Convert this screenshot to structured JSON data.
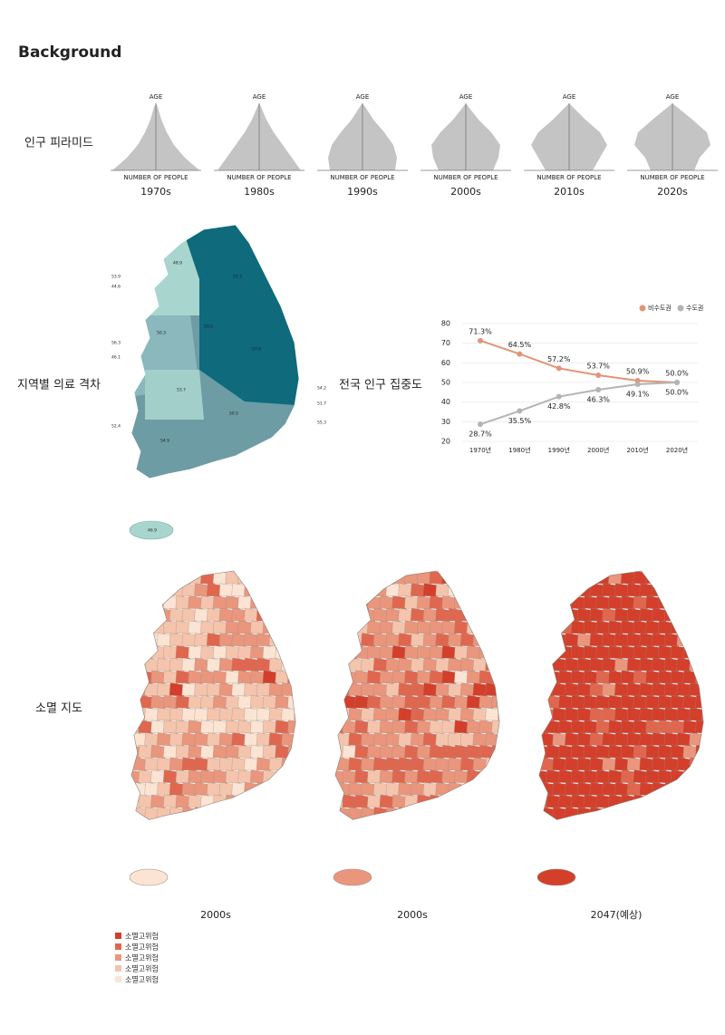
{
  "title": "Background",
  "pyramid": {
    "label": "인구 피라미드",
    "axis_top": "AGE",
    "axis_bottom": "NUMBER OF PEOPLE",
    "decades": [
      "1970s",
      "1980s",
      "1990s",
      "2000s",
      "2010s",
      "2020s"
    ]
  },
  "regional": {
    "label": "지역별 의료 격차",
    "map_labels": [
      "48.9",
      "53.9",
      "44.6",
      "57.3",
      "59.5",
      "50.3",
      "56.3",
      "46.1",
      "57.6",
      "53.7",
      "54.2",
      "51.7",
      "50.5",
      "52.4",
      "55.3",
      "54.9",
      "46.9"
    ]
  },
  "chart_data": {
    "type": "line",
    "title": "전국 인구 집중도",
    "categories": [
      "1970년",
      "1980년",
      "1990년",
      "2000년",
      "2010년",
      "2020년"
    ],
    "series": [
      {
        "name": "비수도권",
        "color": "#e29479",
        "values": [
          71.3,
          64.5,
          57.2,
          53.7,
          50.9,
          50.0
        ],
        "value_labels": [
          "71.3%",
          "64.5%",
          "57.2%",
          "53.7%",
          "50.9%",
          "50.0%"
        ]
      },
      {
        "name": "수도권",
        "color": "#b4b4b4",
        "values": [
          28.7,
          35.5,
          42.8,
          46.3,
          49.1,
          50.0
        ],
        "value_labels": [
          "28.7%",
          "35.5%",
          "42.8%",
          "46.3%",
          "49.1%",
          "50.0%"
        ]
      }
    ],
    "ylim": [
      20,
      80
    ],
    "yticks": [
      20,
      30,
      40,
      50,
      60,
      70,
      80
    ],
    "grid": true
  },
  "extinction": {
    "label": "소멸 지도",
    "maps": [
      "2000s",
      "2000s",
      "2047(예상)"
    ],
    "legend": [
      "소멸고위험",
      "소멸고위험",
      "소멸고위험",
      "소멸고위험",
      "소멸고위험"
    ],
    "legend_colors": [
      "#d33f2b",
      "#e0674f",
      "#e9967d",
      "#f4c4ac",
      "#fbe4d3"
    ]
  }
}
